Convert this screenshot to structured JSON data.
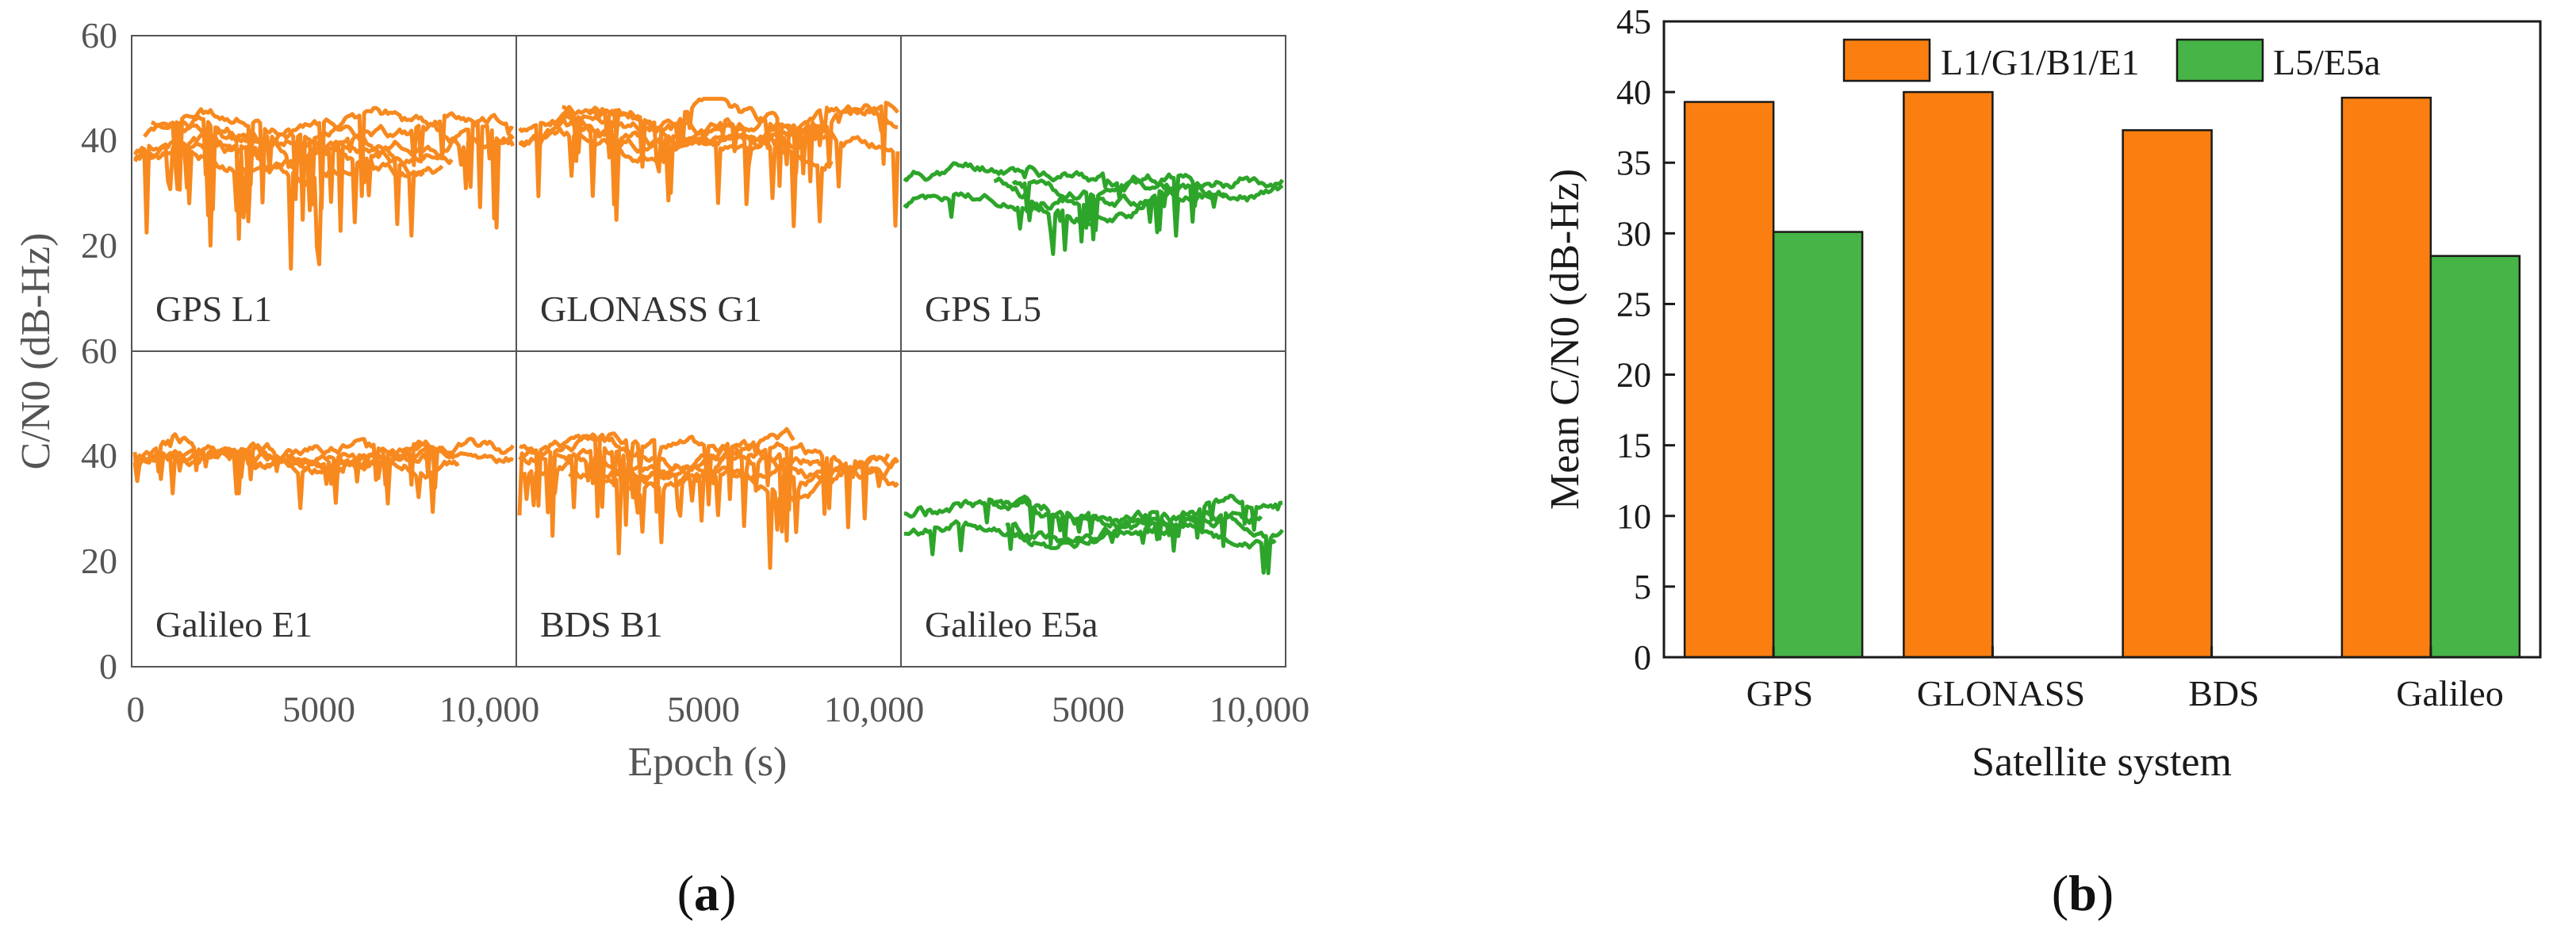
{
  "colors": {
    "orange": "#F7891F",
    "green": "#2DA52A",
    "bar_orange": "#FA7F10",
    "bar_green": "#46B446",
    "axis": "#1a1a1a",
    "panel_axis": "#555555"
  },
  "chart_data": [
    {
      "id": "a",
      "caption_letter": "a",
      "type": "line",
      "description": "C/N0 time series per signal, 2x3 small multiples sharing axes",
      "ylabel": "C/N0 (dB-Hz)",
      "xlabel": "Epoch (s)",
      "ylim": [
        0,
        60
      ],
      "xlim": [
        0,
        10500
      ],
      "y_ticks_top": [
        "60",
        "40",
        "20"
      ],
      "y_ticks_bottom": [
        "60",
        "40",
        "20",
        "0"
      ],
      "x_ticks": [
        "0",
        "5000",
        "10,000"
      ],
      "x_tick_values": [
        0,
        5000,
        10000
      ],
      "panels": [
        {
          "label": "GPS L1",
          "color": "orange",
          "row": 0,
          "col": 0,
          "base": 40,
          "spread": 5,
          "dips": 18,
          "seed": 3,
          "nlines": 6
        },
        {
          "label": "GLONASS G1",
          "color": "orange",
          "row": 0,
          "col": 1,
          "base": 42,
          "spread": 4,
          "dips": 14,
          "seed": 7,
          "nlines": 6
        },
        {
          "label": "GPS L5",
          "color": "green",
          "row": 0,
          "col": 2,
          "base": 30,
          "spread": 4,
          "dips": 8,
          "seed": 11,
          "nlines": 4
        },
        {
          "label": "Galileo E1",
          "color": "orange",
          "row": 1,
          "col": 0,
          "base": 39,
          "spread": 2.5,
          "dips": 8,
          "seed": 13,
          "nlines": 5
        },
        {
          "label": "BDS B1",
          "color": "orange",
          "row": 1,
          "col": 1,
          "base": 38,
          "spread": 4,
          "dips": 16,
          "seed": 17,
          "nlines": 6
        },
        {
          "label": "Galileo E5a",
          "color": "green",
          "row": 1,
          "col": 2,
          "base": 28,
          "spread": 4,
          "dips": 6,
          "seed": 19,
          "nlines": 4
        }
      ]
    },
    {
      "id": "b",
      "caption_letter": "b",
      "type": "bar",
      "title": "",
      "xlabel": "Satellite system",
      "ylabel": "Mean C/N0 (dB-Hz)",
      "ylim": [
        0,
        45
      ],
      "y_ticks": [
        0,
        5,
        10,
        15,
        20,
        25,
        30,
        35,
        40,
        45
      ],
      "categories": [
        "GPS",
        "GLONASS",
        "BDS",
        "Galileo"
      ],
      "series": [
        {
          "name": "L1/G1/B1/E1",
          "color": "bar_orange",
          "values": [
            39.3,
            40.0,
            37.3,
            39.6
          ]
        },
        {
          "name": "L5/E5a",
          "color": "bar_green",
          "values": [
            30.1,
            null,
            null,
            28.4
          ]
        }
      ],
      "legend_position": "top-center"
    }
  ]
}
